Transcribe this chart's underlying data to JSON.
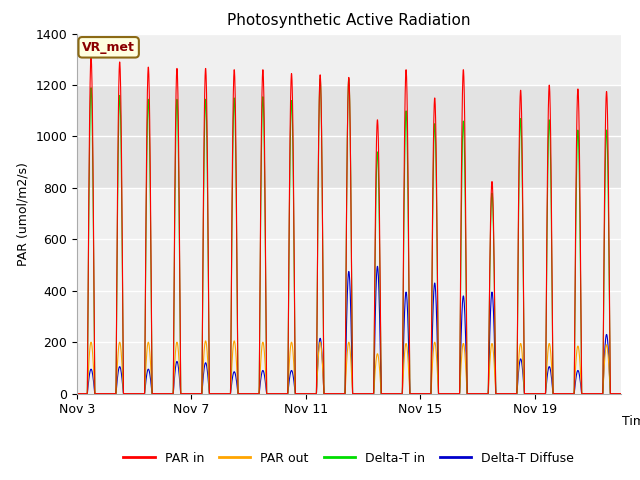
{
  "title": "Photosynthetic Active Radiation",
  "ylabel": "PAR (umol/m2/s)",
  "xlabel": "Time",
  "ylim": [
    0,
    1400
  ],
  "fig_bg_color": "#ffffff",
  "plot_bg_color": "#f0f0f0",
  "shade_band_color": "#e0e0e0",
  "label_box_text": "VR_met",
  "label_box_facecolor": "#ffffe0",
  "label_box_edgecolor": "#8b6914",
  "xtick_labels": [
    "Nov 3",
    "Nov 7",
    "Nov 11",
    "Nov 15",
    "Nov 19"
  ],
  "legend_labels": [
    "PAR in",
    "PAR out",
    "Delta-T in",
    "Delta-T Diffuse"
  ],
  "colors": [
    "#ff0000",
    "#ffa500",
    "#00dd00",
    "#0000cc"
  ],
  "num_days": 19,
  "start_day": 3,
  "par_in_peaks": [
    1310,
    1290,
    1270,
    1265,
    1265,
    1260,
    1260,
    1245,
    1240,
    1230,
    1065,
    1260,
    1150,
    1260,
    825,
    1180,
    1200,
    1185,
    1175
  ],
  "par_out_peaks": [
    200,
    200,
    200,
    200,
    205,
    205,
    200,
    200,
    200,
    200,
    155,
    195,
    200,
    195,
    195,
    195,
    195,
    185,
    190
  ],
  "delta_t_peaks": [
    1190,
    1160,
    1145,
    1145,
    1145,
    1150,
    1155,
    1140,
    1225,
    1225,
    940,
    1100,
    1050,
    1060,
    780,
    1070,
    1065,
    1025,
    1025
  ],
  "delta_d_peaks": [
    95,
    105,
    95,
    125,
    120,
    85,
    90,
    90,
    215,
    475,
    495,
    395,
    430,
    380,
    395,
    135,
    105,
    90,
    230
  ]
}
